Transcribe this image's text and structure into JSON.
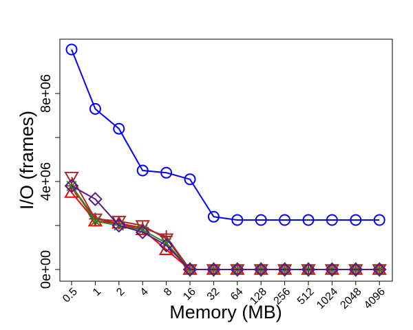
{
  "chart_data": {
    "type": "line",
    "title": "",
    "xlabel": "Memory (MB)",
    "ylabel": "I/O (frames)",
    "categories": [
      "0.5",
      "1",
      "2",
      "4",
      "8",
      "16",
      "32",
      "64",
      "128",
      "256",
      "512",
      "1024",
      "2048",
      "4096"
    ],
    "yticks": [
      0,
      4000000,
      8000000
    ],
    "ytick_labels": [
      "0e+00",
      "4e+06",
      "8e+06"
    ],
    "yminor_ticks": [
      2000000,
      6000000
    ],
    "ylim": [
      -300000,
      10400000
    ],
    "grid": false,
    "legend": "none",
    "series": [
      {
        "color": "#0000ff",
        "marker": "circle",
        "values": [
          10000000,
          7300000,
          6400000,
          4500000,
          4400000,
          4100000,
          2400000,
          2250000,
          2250000,
          2250000,
          2250000,
          2250000,
          2250000,
          2250000
        ]
      },
      {
        "color": "#ff0000",
        "marker": "triangle-up",
        "values": [
          3500000,
          2200000,
          2100000,
          1800000,
          900000,
          0,
          0,
          0,
          0,
          0,
          0,
          0,
          0,
          0
        ]
      },
      {
        "color": "#a52a2a",
        "marker": "triangle-down",
        "values": [
          4200000,
          2300000,
          2200000,
          2000000,
          1400000,
          0,
          0,
          0,
          0,
          0,
          0,
          0,
          0,
          0
        ]
      },
      {
        "color": "#a52a2a",
        "marker": "plus",
        "values": [
          3800000,
          2300000,
          2100000,
          1900000,
          1500000,
          0,
          0,
          0,
          0,
          0,
          0,
          0,
          0,
          0
        ]
      },
      {
        "color": "#228b22",
        "marker": "x",
        "values": [
          3800000,
          2200000,
          2000000,
          1800000,
          1200000,
          0,
          0,
          0,
          0,
          0,
          0,
          0,
          0,
          0
        ]
      },
      {
        "color": "#551a8b",
        "marker": "diamond",
        "values": [
          3800000,
          3200000,
          2000000,
          1700000,
          1100000,
          0,
          0,
          0,
          0,
          0,
          0,
          0,
          0,
          0
        ]
      }
    ]
  }
}
